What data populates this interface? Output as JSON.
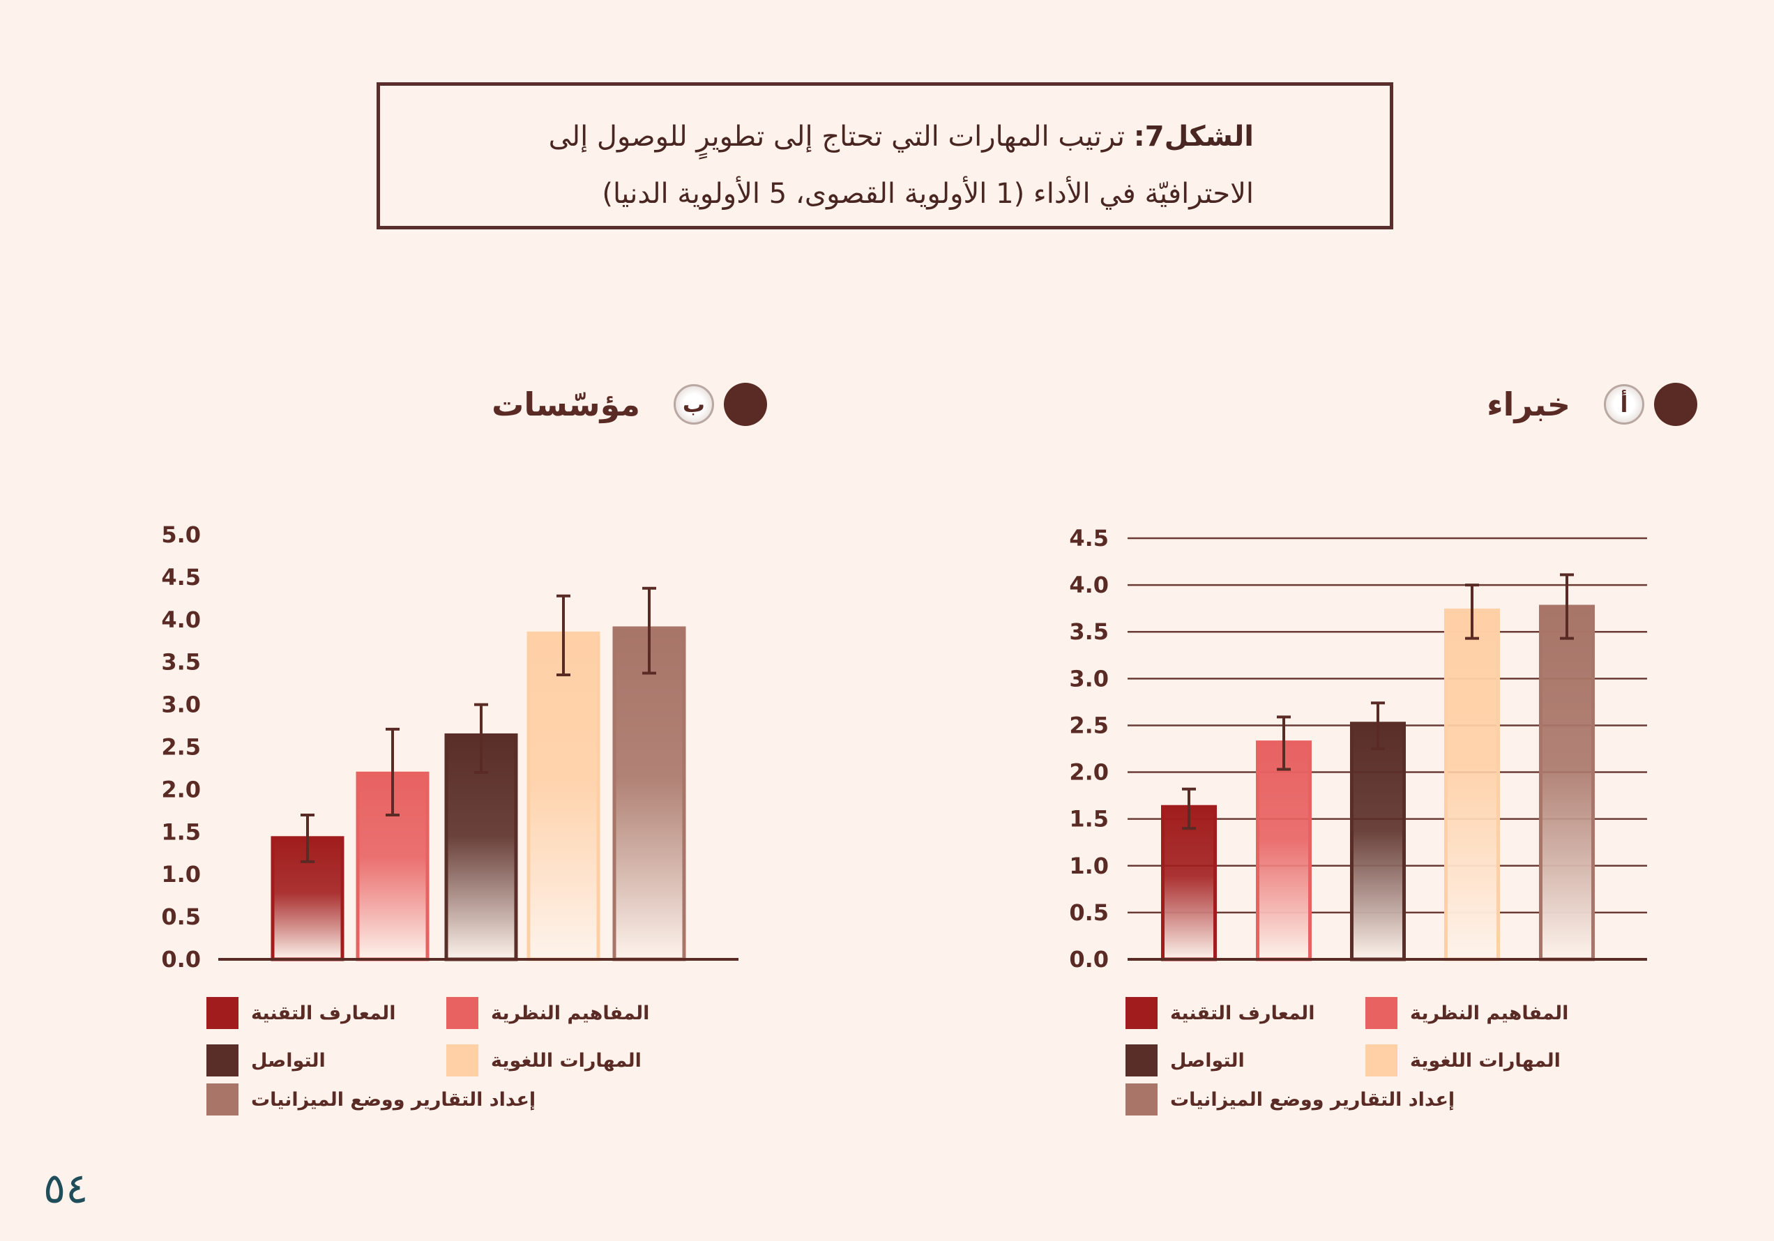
{
  "figure": {
    "label": "الشكل7:",
    "title_line1": "ترتيب المهارات التي تحتاج إلى تطويرٍ للوصول إلى",
    "title_line2": "الاحترافيّة في الأداء (1 الأولوية القصوى، 5 الأولوية الدنيا)"
  },
  "panels": [
    {
      "letter": "أ",
      "title": "خبراء"
    },
    {
      "letter": "ب",
      "title": "مؤسّسات"
    }
  ],
  "page_number": "٥٤",
  "colors": [
    "#a11d1d",
    "#e86262",
    "#5a2e28",
    "#ffd0a6",
    "#a87568"
  ],
  "chart_data": [
    {
      "type": "bar",
      "title": "خبراء",
      "categories": [
        "المعارف التقنية",
        "المفاهيم النظرية",
        "التواصل",
        "المهارات اللغوية",
        "إعداد التقارير ووضع الميزانيات"
      ],
      "values": [
        1.63,
        2.32,
        2.52,
        3.73,
        3.77
      ],
      "error_low": [
        1.4,
        2.03,
        2.25,
        3.43,
        3.43
      ],
      "error_high": [
        1.82,
        2.59,
        2.74,
        4.0,
        4.11
      ],
      "yticks": [
        "0.0",
        "0.5",
        "1.0",
        "1.5",
        "2.0",
        "2.5",
        "3.0",
        "3.5",
        "4.0",
        "4.5"
      ],
      "ylim": [
        0,
        4.5
      ],
      "grid": true,
      "legend": "bottom"
    },
    {
      "type": "bar",
      "title": "مؤسّسات",
      "categories": [
        "المعارف التقنية",
        "المفاهيم النظرية",
        "التواصل",
        "المهارات اللغوية",
        "إعداد التقارير ووضع الميزانيات"
      ],
      "values": [
        1.43,
        2.19,
        2.64,
        3.84,
        3.9
      ],
      "error_low": [
        1.15,
        1.7,
        2.2,
        3.35,
        3.37
      ],
      "error_high": [
        1.7,
        2.71,
        3.0,
        4.28,
        4.37
      ],
      "yticks": [
        "0.0",
        "0.5",
        "1.0",
        "1.5",
        "2.0",
        "2.5",
        "3.0",
        "3.5",
        "4.0",
        "4.5",
        "5.0"
      ],
      "ylim": [
        0,
        5.0
      ],
      "grid": false,
      "legend": "bottom"
    }
  ]
}
